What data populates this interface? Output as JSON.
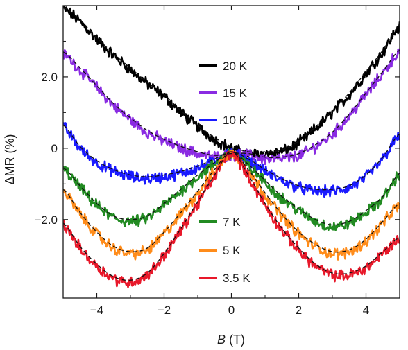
{
  "chart_data": {
    "type": "line",
    "title": "",
    "xlabel_var": "B",
    "xlabel_unit": " (T)",
    "ylabel": "ΔMR (%)",
    "xlim": [
      -5,
      5
    ],
    "ylim": [
      -4.2,
      4.0
    ],
    "grid": false,
    "legend_placement": "center, two groups (upper: 20 K, 15 K, 10 K; lower: 7 K, 5 K, 3.5 K)",
    "xticks": [
      {
        "value": -4,
        "label": "−4"
      },
      {
        "value": -2,
        "label": "−2"
      },
      {
        "value": 0,
        "label": "0"
      },
      {
        "value": 2,
        "label": "2"
      },
      {
        "value": 4,
        "label": "4"
      }
    ],
    "yticks": [
      {
        "value": 2.0,
        "label": "2.0"
      },
      {
        "value": 0,
        "label": "0"
      },
      {
        "value": -2.0,
        "label": "−2.0"
      }
    ],
    "fit_style": "black dashed lines",
    "series": [
      {
        "name": "20 K",
        "color": "#000000",
        "x": [
          -5,
          -4.5,
          -4,
          -3.5,
          -3,
          -2.5,
          -2,
          -1.5,
          -1,
          -0.5,
          0,
          0.5,
          1,
          1.5,
          2,
          2.5,
          3,
          3.5,
          4,
          4.5,
          5
        ],
        "y": [
          3.9,
          3.55,
          3.05,
          2.6,
          2.2,
          1.8,
          1.45,
          1.0,
          0.6,
          0.25,
          0.0,
          -0.15,
          -0.15,
          -0.1,
          0.15,
          0.55,
          1.0,
          1.5,
          2.1,
          2.7,
          3.4
        ]
      },
      {
        "name": "15 K",
        "color": "#8a2be2",
        "x": [
          -5,
          -4.5,
          -4,
          -3.5,
          -3,
          -2.5,
          -2,
          -1.5,
          -1,
          -0.5,
          0,
          0.5,
          1,
          1.5,
          2,
          2.5,
          3,
          3.5,
          4,
          4.5,
          5
        ],
        "y": [
          2.65,
          2.2,
          1.7,
          1.2,
          0.8,
          0.45,
          0.2,
          0.0,
          -0.15,
          -0.25,
          -0.2,
          -0.2,
          -0.3,
          -0.3,
          -0.2,
          0.05,
          0.4,
          0.9,
          1.5,
          2.1,
          2.7
        ]
      },
      {
        "name": "10 K",
        "color": "#1a1aff",
        "x": [
          -5,
          -4.5,
          -4,
          -3.5,
          -3,
          -2.5,
          -2,
          -1.5,
          -1,
          -0.5,
          0,
          0.5,
          1,
          1.5,
          2,
          2.5,
          3,
          3.5,
          4,
          4.5,
          5
        ],
        "y": [
          0.6,
          0.0,
          -0.4,
          -0.65,
          -0.8,
          -0.85,
          -0.8,
          -0.7,
          -0.55,
          -0.35,
          -0.15,
          -0.35,
          -0.65,
          -0.9,
          -1.1,
          -1.2,
          -1.2,
          -1.1,
          -0.8,
          -0.3,
          0.35
        ]
      },
      {
        "name": "7 K",
        "color": "#228b22",
        "x": [
          -5,
          -4.5,
          -4,
          -3.5,
          -3,
          -2.5,
          -2,
          -1.5,
          -1,
          -0.5,
          0,
          0.5,
          1,
          1.5,
          2,
          2.5,
          3,
          3.5,
          4,
          4.5,
          5
        ],
        "y": [
          -0.6,
          -1.1,
          -1.6,
          -1.95,
          -2.05,
          -1.95,
          -1.6,
          -1.2,
          -0.8,
          -0.45,
          -0.15,
          -0.5,
          -0.95,
          -1.4,
          -1.75,
          -2.05,
          -2.2,
          -2.1,
          -1.8,
          -1.4,
          -0.75
        ]
      },
      {
        "name": "5 K",
        "color": "#ff8c1a",
        "x": [
          -5,
          -4.5,
          -4,
          -3.5,
          -3,
          -2.5,
          -2,
          -1.5,
          -1,
          -0.5,
          0,
          0.5,
          1,
          1.5,
          2,
          2.5,
          3,
          3.5,
          4,
          4.5,
          5
        ],
        "y": [
          -1.2,
          -1.85,
          -2.4,
          -2.8,
          -2.95,
          -2.85,
          -2.4,
          -1.85,
          -1.25,
          -0.65,
          -0.15,
          -0.65,
          -1.3,
          -1.9,
          -2.4,
          -2.75,
          -2.95,
          -2.9,
          -2.6,
          -2.1,
          -1.6
        ]
      },
      {
        "name": "3.5 K",
        "color": "#e8182a",
        "x": [
          -5,
          -4.5,
          -4,
          -3.5,
          -3,
          -2.5,
          -2,
          -1.5,
          -1,
          -0.5,
          0,
          0.5,
          1,
          1.5,
          2,
          2.5,
          3,
          3.5,
          4,
          4.5,
          5
        ],
        "y": [
          -2.15,
          -2.8,
          -3.3,
          -3.65,
          -3.75,
          -3.55,
          -3.0,
          -2.3,
          -1.55,
          -0.8,
          -0.15,
          -0.8,
          -1.6,
          -2.3,
          -2.85,
          -3.3,
          -3.55,
          -3.55,
          -3.35,
          -2.95,
          -2.55
        ]
      }
    ]
  }
}
